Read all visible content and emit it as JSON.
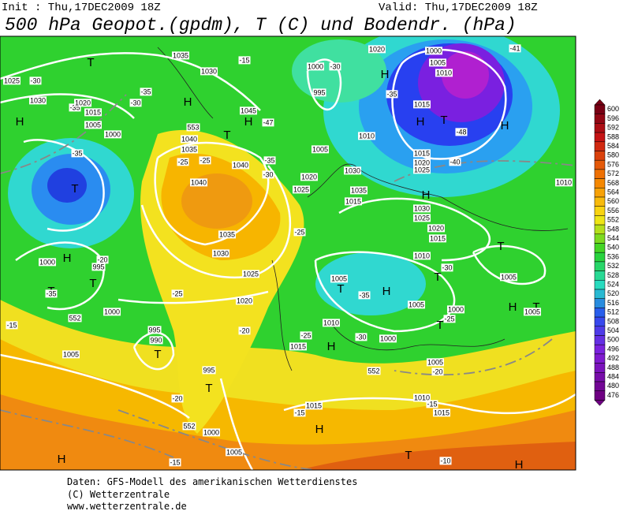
{
  "header": {
    "init": "Init : Thu,17DEC2009 18Z",
    "valid": "Valid: Thu,17DEC2009 18Z",
    "title": "500 hPa Geopot.(gpdm), T (C) und Bodendr. (hPa)"
  },
  "footer": [
    "Daten: GFS-Modell des amerikanischen Wetterdienstes",
    "(C) Wetterzentrale",
    "www.wetterzentrale.de"
  ],
  "colorbar": {
    "values": [
      600,
      596,
      592,
      588,
      584,
      580,
      576,
      572,
      568,
      564,
      560,
      556,
      552,
      548,
      544,
      540,
      536,
      532,
      528,
      524,
      520,
      516,
      512,
      508,
      504,
      500,
      496,
      492,
      488,
      484,
      480,
      476
    ]
  },
  "map": {
    "pressure_centers": [
      "T",
      "H",
      "H",
      "T",
      "H",
      "T",
      "H",
      "T",
      "T",
      "T",
      "T",
      "H",
      "H",
      "T",
      "H",
      "H",
      "T",
      "T",
      "T",
      "H",
      "H",
      "T",
      "H",
      "T",
      "H",
      "T",
      "H",
      "H"
    ],
    "contour_labels": [
      "1025",
      "-30",
      "1030",
      "-35",
      "1020",
      "-30",
      "-35",
      "1015",
      "1005",
      "1000",
      "-35",
      "1035",
      "-15",
      "1030",
      "1045",
      "-47",
      "553",
      "1040",
      "1035",
      "-25",
      "-25",
      "1040",
      "1040",
      "1035",
      "1030",
      "1025",
      "1020",
      "-25",
      "-35",
      "-30",
      "1020",
      "1025",
      "1000",
      "-30",
      "995",
      "1005",
      "1010",
      "1030",
      "1035",
      "1015",
      "1020",
      "-35",
      "1000",
      "1005",
      "1010",
      "-41",
      "1015",
      "-48",
      "1015",
      "1020",
      "1025",
      "-40",
      "1010",
      "1030",
      "1025",
      "1020",
      "1015",
      "1010",
      "-30",
      "1005",
      "1005",
      "-35",
      "1005",
      "1000",
      "1005",
      "-25",
      "1010",
      "1000",
      "-30",
      "-25",
      "1015",
      "1000",
      "995",
      "-20",
      "-35",
      "1000",
      "-25",
      "552",
      "-15",
      "995",
      "990",
      "1005",
      "-20",
      "995",
      "-20",
      "552",
      "1000",
      "1005",
      "-15",
      "1015",
      "-15",
      "1010",
      "-15",
      "1015",
      "1005",
      "-20",
      "552",
      "-10"
    ]
  }
}
